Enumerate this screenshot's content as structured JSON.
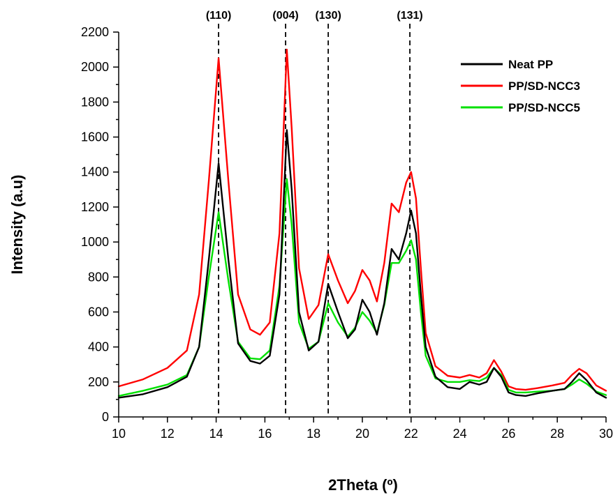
{
  "chart_data": {
    "type": "line",
    "title": "",
    "xlabel": "2Theta (º)",
    "ylabel": "Intensity (a.u)",
    "xlim": [
      10,
      30
    ],
    "ylim": [
      0,
      2200
    ],
    "xticks": [
      10,
      12,
      14,
      16,
      18,
      20,
      22,
      24,
      26,
      28,
      30
    ],
    "yticks": [
      0,
      200,
      400,
      600,
      800,
      1000,
      1200,
      1400,
      1600,
      1800,
      2000,
      2200
    ],
    "grid": false,
    "legend_position": "top-right",
    "annotations": [
      {
        "label": "(110)",
        "x": 14.1
      },
      {
        "label": "(004)",
        "x": 16.85
      },
      {
        "label": "(130)",
        "x": 18.6
      },
      {
        "label": "(131)",
        "x": 21.95
      }
    ],
    "series": [
      {
        "name": "Neat PP",
        "color": "#000000",
        "x": [
          10,
          11,
          12,
          12.8,
          13.3,
          13.7,
          14.1,
          14.5,
          14.9,
          15.4,
          15.8,
          16.2,
          16.6,
          16.9,
          17.1,
          17.4,
          17.8,
          18.2,
          18.6,
          19.0,
          19.4,
          19.7,
          20.0,
          20.3,
          20.6,
          20.9,
          21.2,
          21.5,
          21.8,
          22.0,
          22.2,
          22.4,
          22.6,
          23.0,
          23.5,
          24.0,
          24.4,
          24.8,
          25.1,
          25.4,
          25.7,
          26.0,
          26.3,
          26.7,
          27.2,
          27.8,
          28.3,
          28.6,
          28.9,
          29.2,
          29.6,
          30.0
        ],
        "values": [
          110,
          130,
          170,
          230,
          400,
          900,
          1450,
          900,
          420,
          320,
          305,
          350,
          700,
          1640,
          1300,
          600,
          380,
          430,
          760,
          600,
          450,
          500,
          670,
          600,
          470,
          650,
          960,
          900,
          1050,
          1180,
          1050,
          700,
          400,
          230,
          170,
          160,
          200,
          185,
          200,
          280,
          230,
          140,
          125,
          120,
          135,
          150,
          160,
          200,
          250,
          210,
          140,
          110
        ]
      },
      {
        "name": "PP/SD-NCC3",
        "color": "#ff0000",
        "x": [
          10,
          11,
          12,
          12.8,
          13.3,
          13.7,
          14.1,
          14.5,
          14.9,
          15.4,
          15.8,
          16.2,
          16.6,
          16.9,
          17.1,
          17.4,
          17.8,
          18.2,
          18.6,
          19.0,
          19.4,
          19.7,
          20.0,
          20.3,
          20.6,
          20.9,
          21.2,
          21.5,
          21.8,
          22.0,
          22.2,
          22.4,
          22.6,
          23.0,
          23.5,
          24.0,
          24.4,
          24.8,
          25.1,
          25.4,
          25.7,
          26.0,
          26.3,
          26.7,
          27.2,
          27.8,
          28.3,
          28.6,
          28.9,
          29.2,
          29.6,
          30.0
        ],
        "values": [
          175,
          215,
          280,
          380,
          700,
          1350,
          2050,
          1350,
          700,
          500,
          470,
          540,
          1050,
          2100,
          1650,
          850,
          560,
          640,
          930,
          780,
          650,
          720,
          840,
          780,
          660,
          880,
          1220,
          1170,
          1340,
          1400,
          1250,
          850,
          480,
          290,
          235,
          225,
          240,
          225,
          250,
          325,
          260,
          175,
          160,
          155,
          165,
          180,
          195,
          240,
          275,
          250,
          180,
          150
        ]
      },
      {
        "name": "PP/SD-NCC5",
        "color": "#00e000",
        "x": [
          10,
          11,
          12,
          12.8,
          13.3,
          13.7,
          14.1,
          14.5,
          14.9,
          15.4,
          15.8,
          16.2,
          16.6,
          16.9,
          17.1,
          17.4,
          17.8,
          18.2,
          18.6,
          19.0,
          19.4,
          19.7,
          20.0,
          20.3,
          20.6,
          20.9,
          21.2,
          21.5,
          21.8,
          22.0,
          22.2,
          22.4,
          22.6,
          23.0,
          23.5,
          24.0,
          24.4,
          24.8,
          25.1,
          25.4,
          25.7,
          26.0,
          26.3,
          26.7,
          27.2,
          27.8,
          28.3,
          28.6,
          28.9,
          29.2,
          29.6,
          30.0
        ],
        "values": [
          120,
          150,
          185,
          240,
          400,
          800,
          1170,
          780,
          430,
          335,
          330,
          380,
          750,
          1360,
          1100,
          540,
          390,
          430,
          650,
          540,
          460,
          510,
          600,
          550,
          480,
          640,
          880,
          880,
          950,
          1010,
          900,
          600,
          350,
          220,
          200,
          200,
          210,
          205,
          225,
          280,
          240,
          155,
          140,
          140,
          145,
          150,
          160,
          185,
          215,
          190,
          145,
          125
        ]
      }
    ]
  }
}
